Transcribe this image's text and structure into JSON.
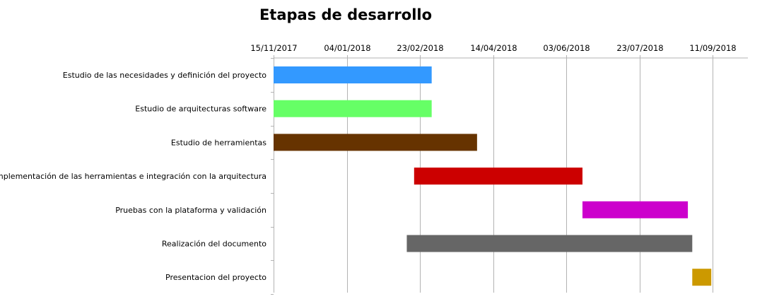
{
  "chart_data": {
    "type": "bar",
    "orientation": "horizontal",
    "stacked_offset": true,
    "title": "Etapas de desarrollo",
    "xlabel": "",
    "ylabel": "",
    "x_axis_position": "top",
    "grid": true,
    "legend": "none",
    "xlim": [
      "2017-11-15",
      "2018-10-05"
    ],
    "x_ticks": [
      "2017-11-15",
      "2018-01-04",
      "2018-02-23",
      "2018-04-14",
      "2018-06-03",
      "2018-07-23",
      "2018-09-11"
    ],
    "x_tick_labels": [
      "15/11/2017",
      "04/01/2018",
      "23/02/2018",
      "14/04/2018",
      "03/06/2018",
      "23/07/2018",
      "11/09/2018"
    ],
    "categories": [
      "Estudio de las necesidades y definición del proyecto",
      "Estudio de arquitecturas software",
      "Estudio de herramientas",
      "Implementación de las herramientas e integración con la arquitectura",
      "Pruebas con la plataforma y validación",
      "Realización del documento",
      "Presentacion del proyecto"
    ],
    "tasks": [
      {
        "start": "2017-11-15",
        "end": "2018-03-03",
        "color": "#3399ff"
      },
      {
        "start": "2017-11-15",
        "end": "2018-03-03",
        "color": "#66ff66"
      },
      {
        "start": "2017-11-15",
        "end": "2018-04-03",
        "color": "#663300"
      },
      {
        "start": "2018-02-19",
        "end": "2018-06-14",
        "color": "#cc0000"
      },
      {
        "start": "2018-06-14",
        "end": "2018-08-25",
        "color": "#cc00cc"
      },
      {
        "start": "2018-02-14",
        "end": "2018-08-28",
        "color": "#666666"
      },
      {
        "start": "2018-08-28",
        "end": "2018-09-10",
        "color": "#cc9900"
      }
    ]
  }
}
